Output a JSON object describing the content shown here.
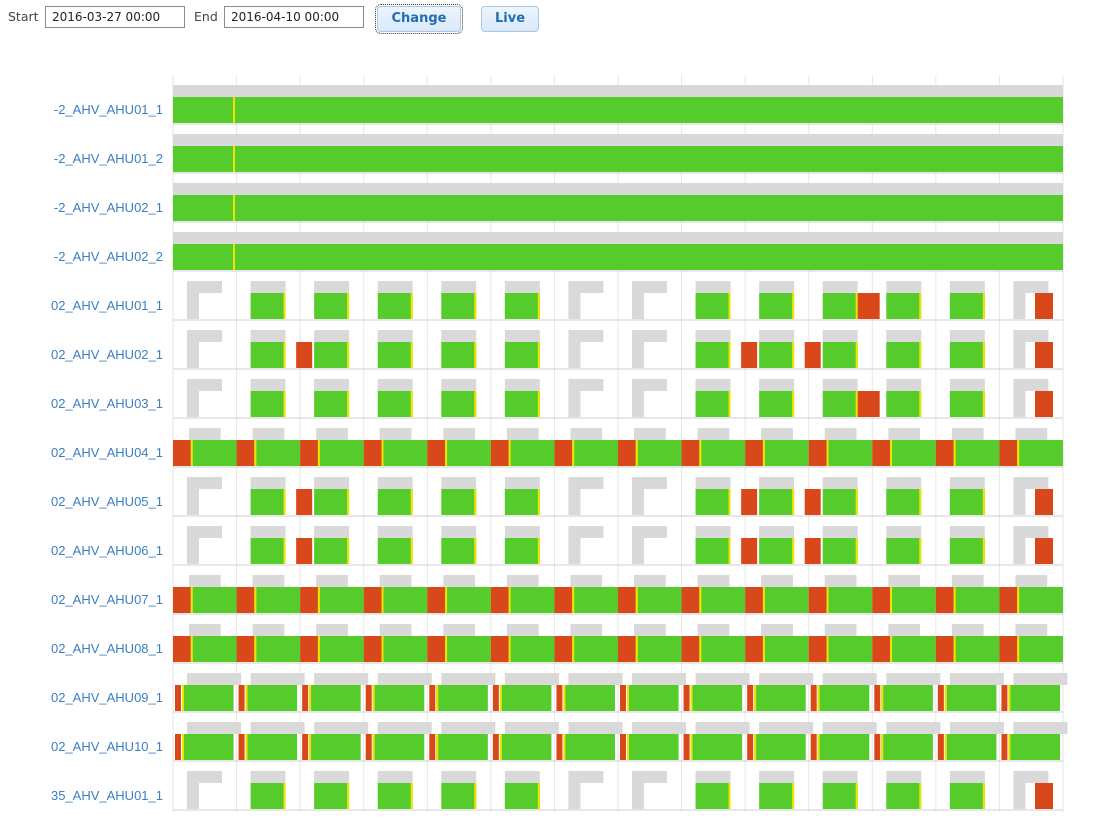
{
  "toolbar": {
    "start_label": "Start",
    "start_value": "2016-03-27 00:00",
    "end_label": "End",
    "end_value": "2016-04-10 00:00",
    "change_button": "Change",
    "live_button": "Live"
  },
  "colors": {
    "running": "#55cc2c",
    "fault": "#d9481a",
    "transition": "#f2e200",
    "background_segment": "#d9d9d9",
    "label": "#3a7fc4",
    "gridline": "#e6e6e6"
  },
  "timeline": {
    "rows": [
      {
        "label": "-2_AHV_AHU01_1",
        "mode": "continuous"
      },
      {
        "label": "-2_AHV_AHU01_2",
        "mode": "continuous"
      },
      {
        "label": "-2_AHV_AHU02_1",
        "mode": "continuous"
      },
      {
        "label": "-2_AHV_AHU02_2",
        "mode": "continuous"
      },
      {
        "label": "02_AHV_AHU01_1",
        "mode": "schedule"
      },
      {
        "label": "02_AHV_AHU02_1",
        "mode": "schedule"
      },
      {
        "label": "02_AHV_AHU03_1",
        "mode": "schedule"
      },
      {
        "label": "02_AHV_AHU04_1",
        "mode": "alternating"
      },
      {
        "label": "02_AHV_AHU05_1",
        "mode": "schedule"
      },
      {
        "label": "02_AHV_AHU06_1",
        "mode": "schedule"
      },
      {
        "label": "02_AHV_AHU07_1",
        "mode": "alternating"
      },
      {
        "label": "02_AHV_AHU08_1",
        "mode": "alternating"
      },
      {
        "label": "02_AHV_AHU09_1",
        "mode": "mostly-on"
      },
      {
        "label": "02_AHV_AHU10_1",
        "mode": "mostly-on"
      },
      {
        "label": "35_AHV_AHU01_1",
        "mode": "schedule"
      }
    ]
  }
}
